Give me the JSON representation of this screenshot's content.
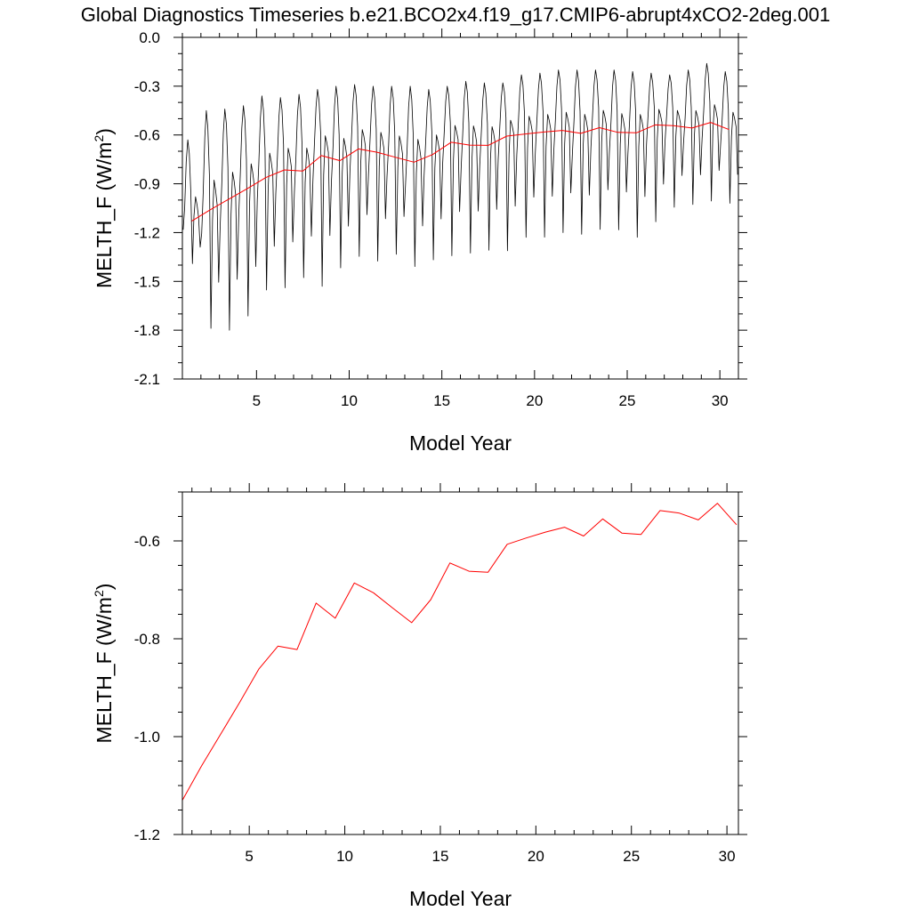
{
  "title": "Global Diagnostics Timeseries b.e21.BCO2x4.f19_g17.CMIP6-abrupt4xCO2-2deg.001",
  "colors": {
    "monthly": "#000000",
    "annual": "#ff0000",
    "axes": "#000000"
  },
  "chart_data": [
    {
      "type": "line",
      "xlabel": "Model Year",
      "ylabel": "MELTH_F (W/m",
      "ylabel_superscript": "2",
      "ylabel_suffix": ")",
      "xlim": [
        1,
        31
      ],
      "ylim": [
        -2.1,
        0.0
      ],
      "xticks": [
        5,
        10,
        15,
        20,
        25,
        30
      ],
      "xtick_labels": [
        "5",
        "10",
        "15",
        "20",
        "25",
        "30"
      ],
      "yticks": [
        0.0,
        -0.3,
        -0.6,
        -0.9,
        -1.2,
        -1.5,
        -1.8,
        -2.1
      ],
      "ytick_labels": [
        "0.0",
        "-0.3",
        "-0.6",
        "-0.9",
        "-1.2",
        "-1.5",
        "-1.8",
        "-2.1"
      ],
      "series": [
        {
          "style": "monthly",
          "x_start": 1.0417,
          "x_step": 0.08333,
          "cycle_high": [
            0.0,
            0.17,
            0.73,
            1.0,
            0.83,
            0.35,
            0.0,
            0.19,
            0.3,
            0.2,
            0.05,
            0.0
          ],
          "cycle_low": [
            0.18,
            0.0,
            0.0,
            0.0,
            0.0,
            0.0,
            0.9,
            0.22,
            0.0,
            0.0,
            0.0,
            0.55
          ],
          "year_min": [
            -1.42,
            -1.87,
            -1.89,
            -1.8,
            -1.63,
            -1.62,
            -1.55,
            -1.62,
            -1.49,
            -1.42,
            -1.45,
            -1.4,
            -1.48,
            -1.44,
            -1.42,
            -1.4,
            -1.38,
            -1.39,
            -1.3,
            -1.3,
            -1.27,
            -1.28,
            -1.25,
            -1.25,
            -1.3,
            -1.2,
            -1.1,
            -1.08,
            -1.06,
            -1.07
          ],
          "year_max": [
            -0.63,
            -0.45,
            -0.44,
            -0.42,
            -0.36,
            -0.37,
            -0.35,
            -0.32,
            -0.3,
            -0.29,
            -0.3,
            -0.3,
            -0.3,
            -0.32,
            -0.3,
            -0.27,
            -0.28,
            -0.28,
            -0.23,
            -0.22,
            -0.2,
            -0.2,
            -0.2,
            -0.2,
            -0.21,
            -0.22,
            -0.23,
            -0.2,
            -0.16,
            -0.21
          ],
          "annual_mean": [
            -1.13,
            -1.06,
            -0.995,
            -0.93,
            -0.862,
            -0.815,
            -0.822,
            -0.727,
            -0.758,
            -0.686,
            -0.706,
            -0.737,
            -0.767,
            -0.72,
            -0.645,
            -0.662,
            -0.664,
            -0.607,
            -0.594,
            -0.582,
            -0.572,
            -0.59,
            -0.555,
            -0.584,
            -0.587,
            -0.538,
            -0.543,
            -0.557,
            -0.523,
            -0.567
          ]
        },
        {
          "style": "annual",
          "x": [
            1.5,
            2.5,
            3.5,
            4.5,
            5.5,
            6.5,
            7.5,
            8.5,
            9.5,
            10.5,
            11.5,
            12.5,
            13.5,
            14.5,
            15.5,
            16.5,
            17.5,
            18.5,
            19.5,
            20.5,
            21.5,
            22.5,
            23.5,
            24.5,
            25.5,
            26.5,
            27.5,
            28.5,
            29.5,
            30.5
          ],
          "values": [
            -1.13,
            -1.06,
            -0.995,
            -0.93,
            -0.862,
            -0.815,
            -0.822,
            -0.727,
            -0.758,
            -0.686,
            -0.706,
            -0.737,
            -0.767,
            -0.72,
            -0.645,
            -0.662,
            -0.664,
            -0.607,
            -0.594,
            -0.582,
            -0.572,
            -0.59,
            -0.555,
            -0.584,
            -0.587,
            -0.538,
            -0.543,
            -0.557,
            -0.523,
            -0.567
          ]
        }
      ]
    },
    {
      "type": "line",
      "xlabel": "Model Year",
      "ylabel": "MELTH_F (W/m",
      "ylabel_superscript": "2",
      "ylabel_suffix": ")",
      "xlim": [
        1.5,
        30.6
      ],
      "ylim": [
        -1.2,
        -0.5
      ],
      "xticks": [
        5,
        10,
        15,
        20,
        25,
        30
      ],
      "xtick_labels": [
        "5",
        "10",
        "15",
        "20",
        "25",
        "30"
      ],
      "yticks": [
        -0.6,
        -0.8,
        -1.0,
        -1.2
      ],
      "ytick_labels": [
        "-0.6",
        "-0.8",
        "-1.0",
        "-1.2"
      ],
      "series": [
        {
          "style": "annual",
          "x": [
            1.5,
            2.5,
            3.5,
            4.5,
            5.5,
            6.5,
            7.5,
            8.5,
            9.5,
            10.5,
            11.5,
            12.5,
            13.5,
            14.5,
            15.5,
            16.5,
            17.5,
            18.5,
            19.5,
            20.5,
            21.5,
            22.5,
            23.5,
            24.5,
            25.5,
            26.5,
            27.5,
            28.5,
            29.5,
            30.5
          ],
          "values": [
            -1.13,
            -1.06,
            -0.995,
            -0.93,
            -0.862,
            -0.815,
            -0.822,
            -0.727,
            -0.758,
            -0.686,
            -0.706,
            -0.737,
            -0.767,
            -0.72,
            -0.645,
            -0.662,
            -0.664,
            -0.607,
            -0.594,
            -0.582,
            -0.572,
            -0.59,
            -0.555,
            -0.584,
            -0.587,
            -0.538,
            -0.543,
            -0.557,
            -0.523,
            -0.567
          ]
        }
      ]
    }
  ]
}
